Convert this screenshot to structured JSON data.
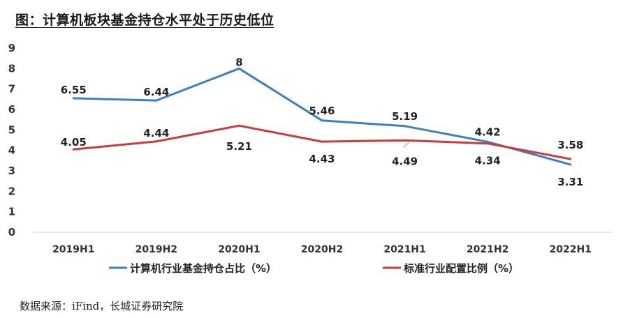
{
  "title": "图：计算机板块基金持仓水平处于历史低位",
  "source": "数据来源：iFind，长城证券研究院",
  "colors": {
    "series1": "#3e7fc1",
    "series2": "#cc3b3b"
  },
  "chart_data": {
    "type": "line",
    "title": "图：计算机板块基金持仓水平处于历史低位",
    "categories": [
      "2019H1",
      "2019H2",
      "2020H1",
      "2020H2",
      "2021H1",
      "2021H2",
      "2022H1"
    ],
    "ylim": [
      0,
      9
    ],
    "yticks": [
      "0",
      "1",
      "2",
      "3",
      "4",
      "5",
      "6",
      "7",
      "8",
      "9"
    ],
    "grid": false,
    "legend": "bottom",
    "series": [
      {
        "name": "计算机行业基金持仓占比（%）",
        "values": [
          6.55,
          6.44,
          8,
          5.46,
          5.19,
          4.42,
          3.31
        ],
        "labels": [
          "6.55",
          "6.44",
          "8",
          "5.46",
          "5.19",
          "4.42",
          "3.31"
        ]
      },
      {
        "name": "标准行业配置比例（%）",
        "values": [
          4.05,
          4.44,
          5.21,
          4.43,
          4.49,
          4.34,
          3.58
        ],
        "labels": [
          "4.05",
          "4.44",
          "5.21",
          "4.43",
          "4.49",
          "4.34",
          "3.58"
        ]
      }
    ]
  }
}
